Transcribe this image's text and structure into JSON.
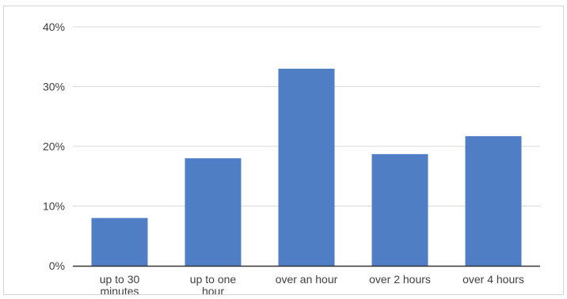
{
  "chart_data": {
    "type": "bar",
    "categories": [
      [
        "up to 30",
        "minutes"
      ],
      [
        "up to one",
        "hour"
      ],
      [
        "over an hour"
      ],
      [
        "over 2 hours"
      ],
      [
        "over 4 hours"
      ]
    ],
    "values": [
      8,
      18,
      33,
      18.7,
      21.7
    ],
    "ylim": [
      0,
      40
    ],
    "y_ticks": [
      0,
      10,
      20,
      30,
      40
    ],
    "y_tick_format": "%",
    "grid": true,
    "legend": "none",
    "bar_color": "#4f7ec4",
    "grid_color": "#d9d9d9",
    "axis_color": "#333333"
  }
}
